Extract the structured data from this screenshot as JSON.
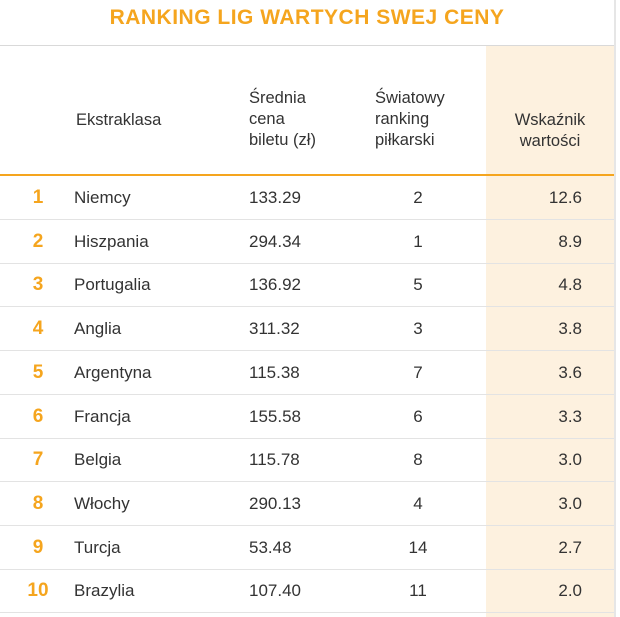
{
  "title": "RANKING LIG WARTYCH SWEJ CENY",
  "headers": {
    "league": "Ekstraklasa",
    "price": [
      "Średnia",
      "cena",
      "biletu (zł)"
    ],
    "ranking": [
      "Światowy",
      "ranking",
      "piłkarski"
    ],
    "value": [
      "Wskaźnik",
      "wartości"
    ]
  },
  "colors": {
    "accent": "#f5a51e",
    "highlight_column": "#fdf1df",
    "text": "#333333"
  },
  "chart_data": {
    "type": "table",
    "title": "RANKING LIG WARTYCH SWEJ CENY",
    "columns": [
      "",
      "Ekstraklasa",
      "Średnia cena biletu (zł)",
      "Światowy ranking piłkarski",
      "Wskaźnik wartości"
    ],
    "rows": [
      {
        "rank": "1",
        "league": "Niemcy",
        "price": "133.29",
        "world_rank": "2",
        "value": "12.6"
      },
      {
        "rank": "2",
        "league": "Hiszpania",
        "price": "294.34",
        "world_rank": "1",
        "value": "8.9"
      },
      {
        "rank": "3",
        "league": "Portugalia",
        "price": "136.92",
        "world_rank": "5",
        "value": "4.8"
      },
      {
        "rank": "4",
        "league": "Anglia",
        "price": "311.32",
        "world_rank": "3",
        "value": "3.8"
      },
      {
        "rank": "5",
        "league": "Argentyna",
        "price": "115.38",
        "world_rank": "7",
        "value": "3.6"
      },
      {
        "rank": "6",
        "league": "Francja",
        "price": "155.58",
        "world_rank": "6",
        "value": "3.3"
      },
      {
        "rank": "7",
        "league": "Belgia",
        "price": "115.78",
        "world_rank": "8",
        "value": "3.0"
      },
      {
        "rank": "8",
        "league": "Włochy",
        "price": "290.13",
        "world_rank": "4",
        "value": "3.0"
      },
      {
        "rank": "9",
        "league": "Turcja",
        "price": "53.48",
        "world_rank": "14",
        "value": "2.7"
      },
      {
        "rank": "10",
        "league": "Brazylia",
        "price": "107.40",
        "world_rank": "11",
        "value": "2.0"
      }
    ]
  }
}
